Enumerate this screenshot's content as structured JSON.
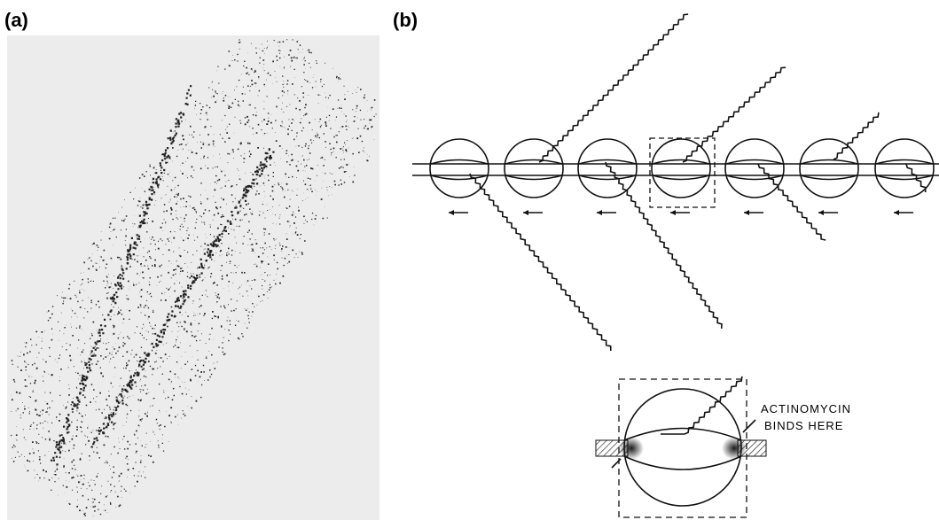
{
  "panel_a": {
    "label": "(a)"
  },
  "panel_b": {
    "label": "(b)",
    "annotation": {
      "line1": "ACTINOMYCIN",
      "line2": "BINDS HERE"
    }
  }
}
